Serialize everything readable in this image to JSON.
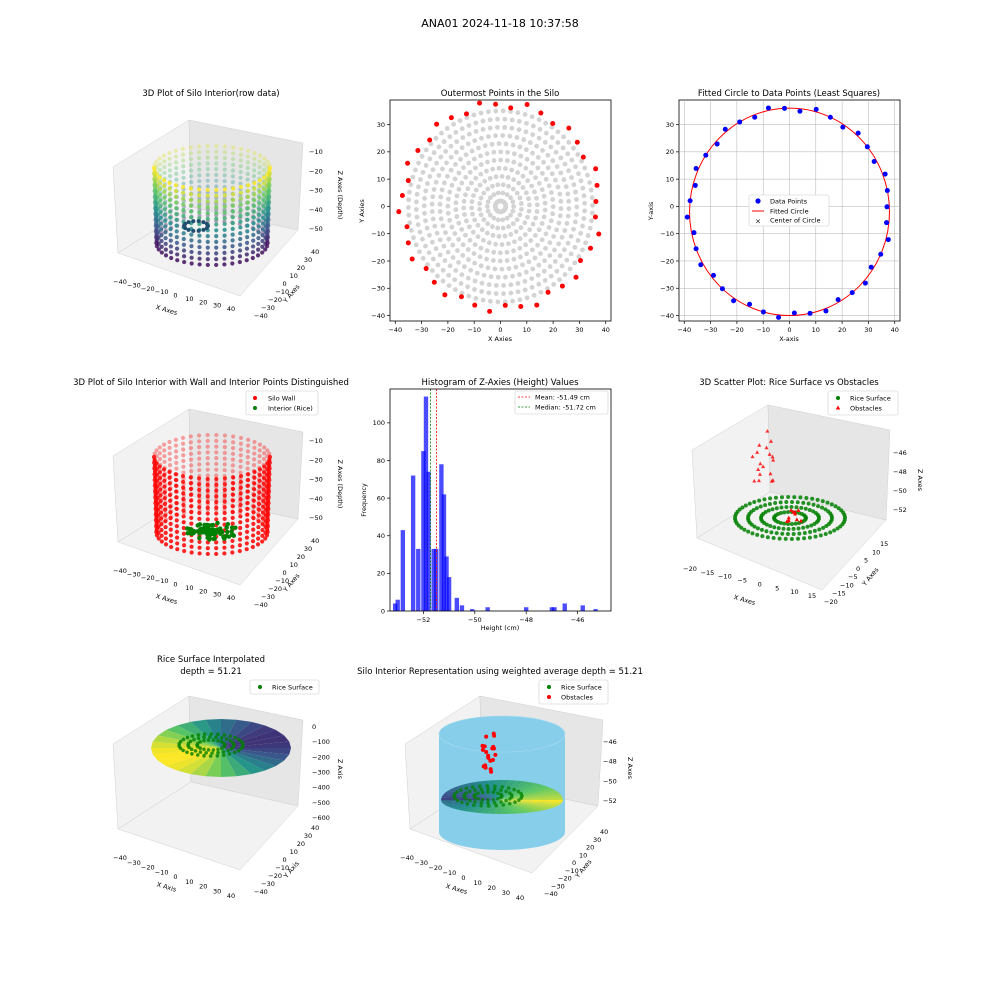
{
  "figure": {
    "suptitle": "ANA01 2024-11-18 10:37:58"
  },
  "panels": {
    "p1": {
      "title": "3D Plot of Silo Interior(row data)",
      "xlabel": "X Axes",
      "ylabel": "Y Axes",
      "zlabel": "Z Axes (Depth)",
      "xticks": [
        "−40",
        "−30",
        "−20",
        "−10",
        "0",
        "10",
        "20",
        "30",
        "40"
      ],
      "yticks": [
        "40",
        "30",
        "20",
        "10",
        "0",
        "−10",
        "−20",
        "−30",
        "−40"
      ],
      "zticks": [
        "−10",
        "−20",
        "−30",
        "−40",
        "−50"
      ]
    },
    "p2": {
      "title": "Outermost Points in the Silo",
      "xlabel": "X Axies",
      "ylabel": "Y Axies"
    },
    "p3": {
      "title": "Fitted Circle to Data Points (Least Squares)",
      "xlabel": "X-axis",
      "ylabel": "Y-axis",
      "legend": [
        "Data Points",
        "Fitted Circle",
        "Center of Circle"
      ]
    },
    "p4": {
      "title": "3D Plot of Silo Interior with Wall and Interior Points Distinguished",
      "xlabel": "X Axes",
      "ylabel": "Y Axes",
      "zlabel": "Z Axes (Depth)",
      "legend": [
        "Silo Wall",
        "Interior (Rice)"
      ],
      "xticks": [
        "−40",
        "−30",
        "−20",
        "−10",
        "0",
        "10",
        "20",
        "30",
        "40"
      ],
      "yticks": [
        "40",
        "30",
        "20",
        "10",
        "0",
        "−10",
        "−20",
        "−30",
        "−40"
      ],
      "zticks": [
        "−10",
        "−20",
        "−30",
        "−40",
        "−50"
      ]
    },
    "p5": {
      "title": "Histogram of Z-Axies (Height) Values",
      "xlabel": "Height (cm)",
      "ylabel": "Frequency",
      "legend": [
        "Mean: -51.49 cm",
        "Median: -51.72 cm"
      ]
    },
    "p6": {
      "title": "3D Scatter Plot: Rice Surface vs Obstacles",
      "xlabel": "X Axes",
      "ylabel": "Y Axes",
      "zlabel": "Z Axes",
      "legend": [
        "Rice Surface",
        "Obstacles"
      ],
      "xticks": [
        "−20",
        "−15",
        "−10",
        "−5",
        "0",
        "5",
        "10",
        "15"
      ],
      "yticks": [
        "15",
        "10",
        "5",
        "0",
        "−5",
        "−10",
        "−15",
        "−20"
      ],
      "zticks": [
        "−46",
        "−48",
        "−50",
        "−52"
      ]
    },
    "p7": {
      "title": "Rice Surface Interpolated",
      "subtitle": "depth = 51.21",
      "xlabel": "X Axis",
      "ylabel": "Y Axis",
      "zlabel": "Z Axis",
      "legend": [
        "Rice Surface"
      ],
      "xticks": [
        "−40",
        "−30",
        "−20",
        "−10",
        "0",
        "10",
        "20",
        "30",
        "40"
      ],
      "yticks": [
        "40",
        "30",
        "20",
        "10",
        "0",
        "−10",
        "−20",
        "−30",
        "−40"
      ],
      "zticks": [
        "0",
        "−100",
        "−200",
        "−300",
        "−400",
        "−500",
        "−600"
      ]
    },
    "p8": {
      "title": "Silo Interior Representation using weighted average depth = 51.21",
      "xlabel": "X Axes",
      "ylabel": "Y Axes",
      "zlabel": "Z Axes",
      "legend": [
        "Rice Surface",
        "Obstacles"
      ],
      "xticks": [
        "−40",
        "−30",
        "−20",
        "−10",
        "0",
        "10",
        "20",
        "30",
        "40"
      ],
      "yticks": [
        "40",
        "30",
        "20",
        "10",
        "0",
        "−10",
        "−20",
        "−30",
        "−40"
      ],
      "zticks": [
        "−46",
        "−48",
        "−50",
        "−52"
      ]
    }
  },
  "colors": {
    "wall": "#ff0000",
    "rice": "#008000",
    "data_points": "#0000ff",
    "fitted": "#ff0000",
    "gray_points": "#d3d3d3",
    "hist": "#0000ff",
    "silo_fill": "#87ceeb"
  },
  "chart_data": [
    {
      "id": "p2",
      "type": "scatter",
      "xlim": [
        -42,
        42
      ],
      "ylim": [
        -42,
        39
      ],
      "xticks": [
        -40,
        -30,
        -20,
        -10,
        0,
        10,
        20,
        30,
        40
      ],
      "yticks": [
        -40,
        -30,
        -20,
        -10,
        0,
        10,
        20,
        30
      ],
      "series": [
        {
          "name": "Outermost points",
          "color": "#ff0000",
          "radius": 37.5,
          "count": 40
        },
        {
          "name": "All points",
          "color": "#d3d3d3"
        }
      ]
    },
    {
      "id": "p3",
      "type": "scatter",
      "xlim": [
        -42,
        42
      ],
      "ylim": [
        -42,
        39
      ],
      "xticks": [
        -40,
        -30,
        -20,
        -10,
        0,
        10,
        20,
        30,
        40
      ],
      "yticks": [
        -40,
        -30,
        -20,
        -10,
        0,
        10,
        20,
        30
      ],
      "grid": true,
      "legend_position": "center",
      "circle": {
        "center": [
          0,
          -2
        ],
        "radius": 38
      }
    },
    {
      "id": "p5",
      "type": "bar",
      "xlim": [
        -53.3,
        -44.7
      ],
      "ylim": [
        0,
        118
      ],
      "xticks": [
        -52,
        -50,
        -48,
        -46
      ],
      "yticks": [
        0,
        20,
        40,
        60,
        80,
        100
      ],
      "mean": -51.49,
      "median": -51.72,
      "legend_position": "top-right",
      "bins": [
        [
          -53.1,
          4
        ],
        [
          -53.0,
          6
        ],
        [
          -52.9,
          0
        ],
        [
          -52.8,
          43
        ],
        [
          -52.6,
          0
        ],
        [
          -52.4,
          72
        ],
        [
          -52.3,
          0
        ],
        [
          -52.2,
          33
        ],
        [
          -52.0,
          85
        ],
        [
          -51.9,
          114
        ],
        [
          -51.8,
          74
        ],
        [
          -51.6,
          33
        ],
        [
          -51.5,
          33
        ],
        [
          -51.3,
          78
        ],
        [
          -51.2,
          62
        ],
        [
          -51.1,
          29
        ],
        [
          -51.0,
          18
        ],
        [
          -50.7,
          7
        ],
        [
          -50.5,
          3
        ],
        [
          -50.1,
          1
        ],
        [
          -49.5,
          2
        ],
        [
          -48.0,
          2
        ],
        [
          -47.0,
          2
        ],
        [
          -46.9,
          2
        ],
        [
          -46.5,
          4
        ],
        [
          -45.8,
          3
        ],
        [
          -45.3,
          1
        ]
      ]
    }
  ]
}
